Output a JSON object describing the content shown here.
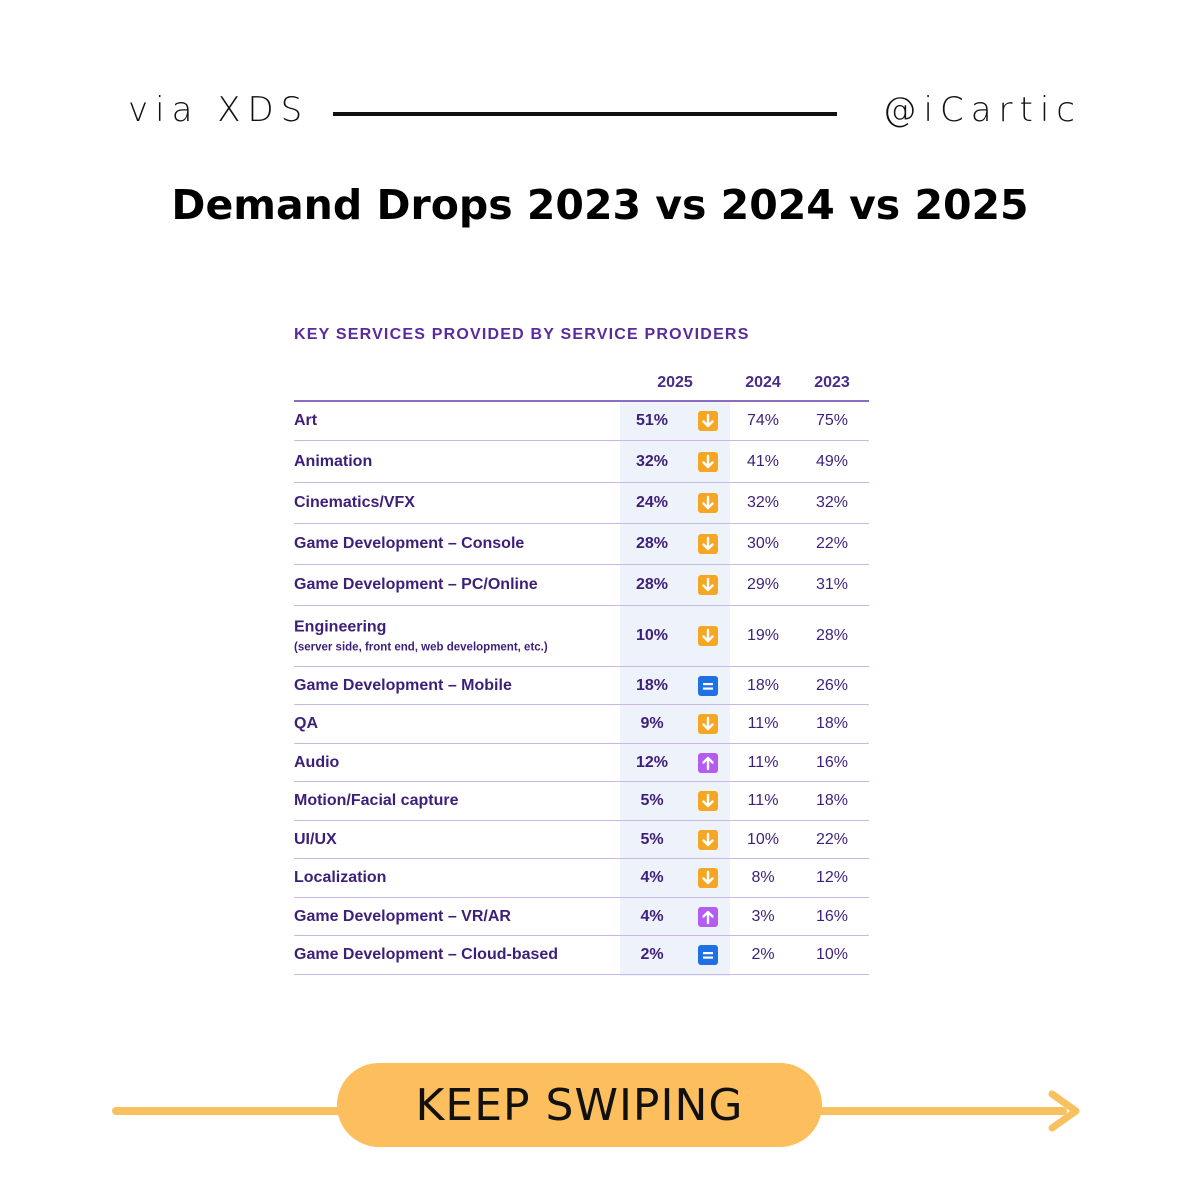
{
  "header": {
    "source": "via XDS",
    "handle": "@iCartic"
  },
  "title": "Demand Drops  2023 vs 2024 vs 2025",
  "footer": {
    "cta": "KEEP SWIPING"
  },
  "colors": {
    "accent": "#fdbe5d",
    "table_text": "#3d1f7a",
    "down": "#f5a623",
    "up": "#b45cf2",
    "same": "#1f6fe5"
  },
  "chart_data": {
    "type": "table",
    "title": "KEY SERVICES PROVIDED BY SERVICE PROVIDERS",
    "columns": [
      "2025",
      "2024",
      "2023"
    ],
    "rows": [
      {
        "label": "Art",
        "sub": "",
        "v2025": "51%",
        "trend": "down",
        "v2024": "74%",
        "v2023": "75%"
      },
      {
        "label": "Animation",
        "sub": "",
        "v2025": "32%",
        "trend": "down",
        "v2024": "41%",
        "v2023": "49%"
      },
      {
        "label": "Cinematics/VFX",
        "sub": "",
        "v2025": "24%",
        "trend": "down",
        "v2024": "32%",
        "v2023": "32%"
      },
      {
        "label": "Game Development – Console",
        "sub": "",
        "v2025": "28%",
        "trend": "down",
        "v2024": "30%",
        "v2023": "22%"
      },
      {
        "label": "Game Development – PC/Online",
        "sub": "",
        "v2025": "28%",
        "trend": "down",
        "v2024": "29%",
        "v2023": "31%"
      },
      {
        "label": "Engineering",
        "sub": "(server side, front end, web development, etc.)",
        "v2025": "10%",
        "trend": "down",
        "v2024": "19%",
        "v2023": "28%"
      },
      {
        "label": "Game Development – Mobile",
        "sub": "",
        "v2025": "18%",
        "trend": "same",
        "v2024": "18%",
        "v2023": "26%"
      },
      {
        "label": "QA",
        "sub": "",
        "v2025": "9%",
        "trend": "down",
        "v2024": "11%",
        "v2023": "18%"
      },
      {
        "label": "Audio",
        "sub": "",
        "v2025": "12%",
        "trend": "up",
        "v2024": "11%",
        "v2023": "16%"
      },
      {
        "label": "Motion/Facial capture",
        "sub": "",
        "v2025": "5%",
        "trend": "down",
        "v2024": "11%",
        "v2023": "18%"
      },
      {
        "label": "UI/UX",
        "sub": "",
        "v2025": "5%",
        "trend": "down",
        "v2024": "10%",
        "v2023": "22%"
      },
      {
        "label": "Localization",
        "sub": "",
        "v2025": "4%",
        "trend": "down",
        "v2024": "8%",
        "v2023": "12%"
      },
      {
        "label": "Game Development – VR/AR",
        "sub": "",
        "v2025": "4%",
        "trend": "up",
        "v2024": "3%",
        "v2023": "16%"
      },
      {
        "label": "Game Development – Cloud-based",
        "sub": "",
        "v2025": "2%",
        "trend": "same",
        "v2024": "2%",
        "v2023": "10%"
      }
    ]
  }
}
